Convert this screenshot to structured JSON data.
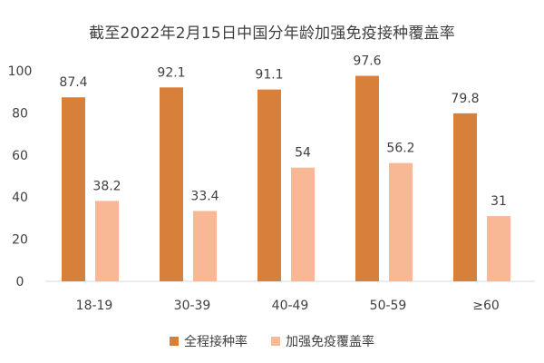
{
  "chart_data": {
    "type": "bar",
    "title": "截至2022年2月15日中国分年龄加强免疫接种覆盖率",
    "categories": [
      "18-19",
      "30-39",
      "40-49",
      "50-59",
      "≥60"
    ],
    "series": [
      {
        "name": "全程接种率",
        "values": [
          87.4,
          92.1,
          91.1,
          97.6,
          79.8
        ],
        "color": "#D87F3A"
      },
      {
        "name": "加强免疫覆盖率",
        "values": [
          38.2,
          33.4,
          54,
          56.2,
          31
        ],
        "color": "#F8B896"
      }
    ],
    "ylim": [
      0,
      100
    ],
    "yticks": [
      0,
      20,
      40,
      60,
      80,
      100
    ],
    "grid": false,
    "legend": "bottom",
    "xlabel": "",
    "ylabel": ""
  }
}
